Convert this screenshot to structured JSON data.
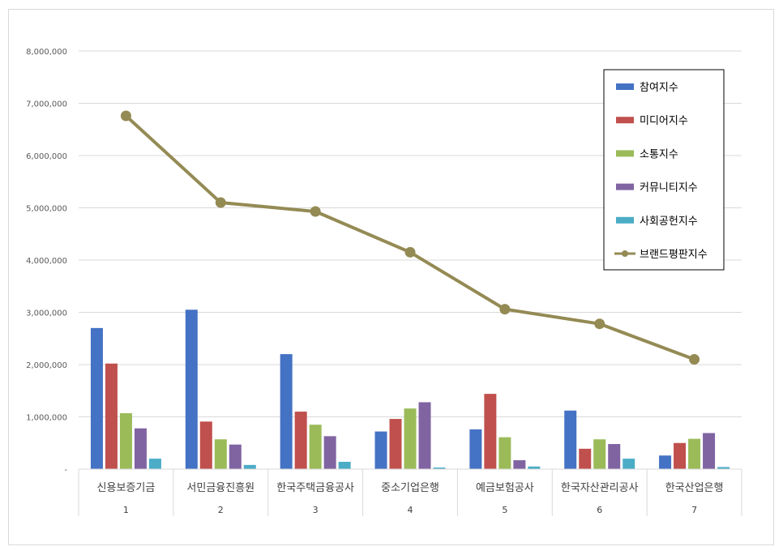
{
  "chart_data": {
    "type": "bar",
    "categories": [
      "신용보증기금",
      "서민금융진흥원",
      "한국주택금융공사",
      "중소기업은행",
      "예금보험공사",
      "한국자산관리공사",
      "한국산업은행"
    ],
    "category_index": [
      "1",
      "2",
      "3",
      "4",
      "5",
      "6",
      "7"
    ],
    "ylim": [
      0,
      8000000
    ],
    "yticks": [
      0,
      1000000,
      2000000,
      3000000,
      4000000,
      5000000,
      6000000,
      7000000,
      8000000
    ],
    "ytick_labels": [
      "-",
      "1,000,000",
      "2,000,000",
      "3,000,000",
      "4,000,000",
      "5,000,000",
      "6,000,000",
      "7,000,000",
      "8,000,000"
    ],
    "grid": true,
    "legend_position": "top-right",
    "series": [
      {
        "name": "참여지수",
        "kind": "bar",
        "color": "#4472c4",
        "values": [
          2700000,
          3050000,
          2200000,
          720000,
          760000,
          1120000,
          260000
        ]
      },
      {
        "name": "미디어지수",
        "kind": "bar",
        "color": "#c0504d",
        "values": [
          2020000,
          910000,
          1100000,
          960000,
          1440000,
          390000,
          500000
        ]
      },
      {
        "name": "소통지수",
        "kind": "bar",
        "color": "#9bbb59",
        "values": [
          1070000,
          570000,
          850000,
          1160000,
          610000,
          570000,
          580000
        ]
      },
      {
        "name": "커뮤니티지수",
        "kind": "bar",
        "color": "#8064a2",
        "values": [
          780000,
          470000,
          630000,
          1280000,
          170000,
          480000,
          690000
        ]
      },
      {
        "name": "사회공헌지수",
        "kind": "bar",
        "color": "#4bacc6",
        "values": [
          200000,
          80000,
          140000,
          30000,
          50000,
          200000,
          40000
        ]
      },
      {
        "name": "브랜드평판지수",
        "kind": "line",
        "color": "#948a54",
        "values": [
          6760000,
          5100000,
          4930000,
          4150000,
          3060000,
          2780000,
          2100000
        ]
      }
    ]
  }
}
